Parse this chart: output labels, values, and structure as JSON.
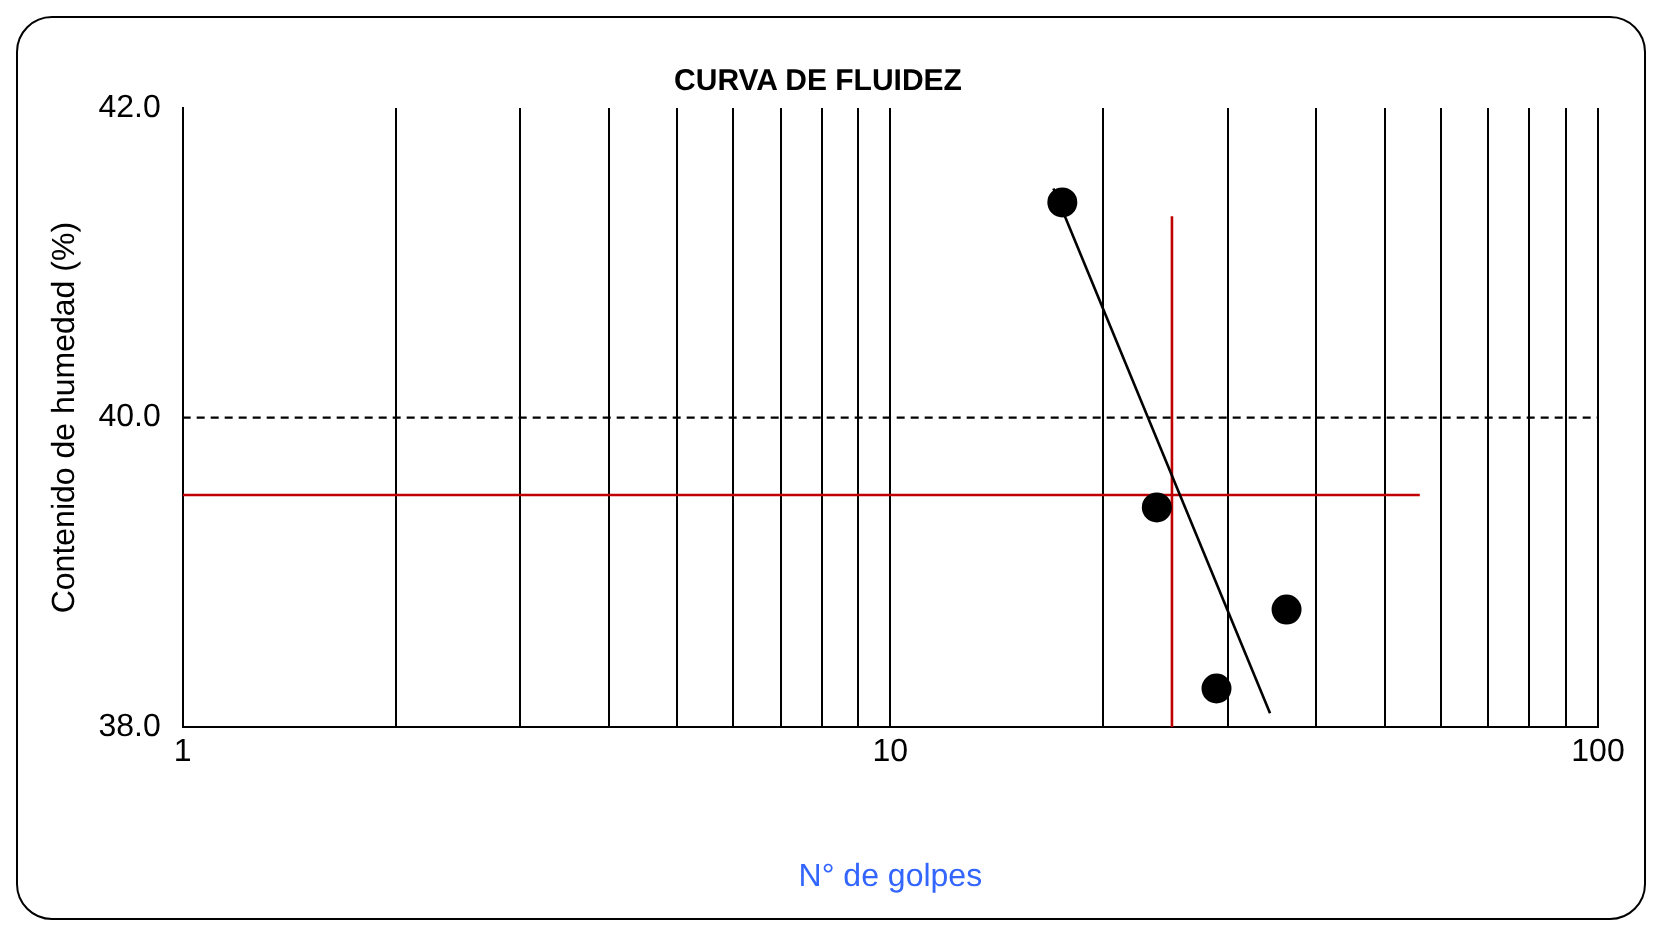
{
  "chart_data": {
    "type": "scatter",
    "title": "CURVA DE FLUIDEZ",
    "xlabel": "N° de golpes",
    "ylabel": "Contenido de humedad (%)",
    "log": "x",
    "grid": "x",
    "marker": "circle",
    "legend": false,
    "xlim": [
      1,
      100
    ],
    "xticks": [
      1,
      {
        "value": 2,
        "label": null
      },
      {
        "value": 3,
        "label": null
      },
      {
        "value": 4,
        "label": null
      },
      {
        "value": 5,
        "label": null
      },
      {
        "value": 6,
        "label": null
      },
      {
        "value": 7,
        "label": null
      },
      {
        "value": 8,
        "label": null
      },
      {
        "value": 9,
        "label": null
      },
      10,
      {
        "value": 20,
        "label": null
      },
      {
        "value": 30,
        "label": null
      },
      {
        "value": 40,
        "label": null
      },
      {
        "value": 50,
        "label": null
      },
      {
        "value": 60,
        "label": null
      },
      {
        "value": 70,
        "label": null
      },
      {
        "value": 80,
        "label": null
      },
      {
        "value": 90,
        "label": null
      },
      100
    ],
    "ylim": [
      38,
      42
    ],
    "yticks": [
      {
        "value": 38,
        "label": "38.0"
      },
      {
        "value": 40,
        "label": "40.0"
      },
      {
        "value": 42,
        "label": "42.0"
      }
    ],
    "ref_lines": [
      {
        "axis": "y",
        "value": 40,
        "color": "#000000",
        "line_style": "dashed"
      }
    ],
    "series": [
      {
        "color": "#000000",
        "x": [
          17.5,
          23.8,
          28.9,
          36.3
        ],
        "values": [
          41.39,
          39.42,
          38.25,
          38.76
        ]
      },
      {
        "type": "line",
        "color": "#000000",
        "x": [
          17,
          34.4
        ],
        "values": [
          41.48,
          38.09
        ],
        "marker": "none"
      },
      {
        "type": "line",
        "color": "#c00000",
        "x": [
          1,
          56
        ],
        "values": [
          39.5,
          39.5
        ],
        "marker": "none"
      },
      {
        "type": "line",
        "color": "#c00000",
        "x": [
          25,
          25
        ],
        "values": [
          38,
          41.3
        ],
        "marker": "none"
      }
    ]
  }
}
